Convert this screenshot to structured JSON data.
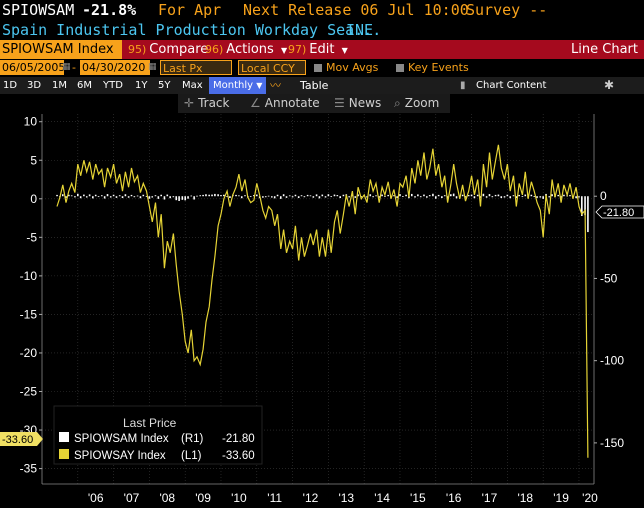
{
  "header": {
    "ticker": "SPIOWSAM",
    "value": "-21.8%",
    "for_label": "For Apr",
    "next_release": "Next Release 06 Jul 10:00",
    "survey": "Survey --",
    "description": "Spain Industrial Production Workday Sea...",
    "source": "INE"
  },
  "menu": {
    "index": "SPIOWSAM Index",
    "compare_num": "95)",
    "compare": "Compare",
    "actions_num": "96)",
    "actions": "Actions",
    "edit_num": "97)",
    "edit": "Edit",
    "chart_type": "Line Chart"
  },
  "controls": {
    "start_date": "06/05/2005",
    "end_date": "04/30/2020",
    "field": "Last Px",
    "currency": "Local CCY",
    "mov_avgs": "Mov Avgs",
    "key_events": "Key Events"
  },
  "periods": {
    "items": [
      "1D",
      "3D",
      "1M",
      "6M",
      "YTD",
      "1Y",
      "5Y",
      "Max"
    ],
    "frequency": "Monthly",
    "table": "Table",
    "chart_content": "Chart Content"
  },
  "tools": {
    "track": "Track",
    "annotate": "Annotate",
    "news": "News",
    "zoom": "Zoom"
  },
  "colors": {
    "background": "#000000",
    "orange": "#f7a21b",
    "red_bar": "#a50a1e",
    "yoy_line": "#e6d435",
    "mom_bars": "#ffffff"
  },
  "chart_data": {
    "type": "line",
    "title": "",
    "left_axis": {
      "ticks": [
        10,
        5,
        0,
        -5,
        -10,
        -15,
        -20,
        -25,
        -30,
        -35
      ],
      "ylim": [
        -37,
        11
      ]
    },
    "right_axis": {
      "ticks": [
        0,
        -50,
        -100,
        -150
      ],
      "ylim": [
        -175,
        50
      ]
    },
    "x_ticks": [
      "'06",
      "'07",
      "'08",
      "'09",
      "'10",
      "'11",
      "'12",
      "'13",
      "'14",
      "'15",
      "'16",
      "'17",
      "'18",
      "'19",
      "'20"
    ],
    "series": [
      {
        "name": "SPIOWSAY Index (L1)",
        "axis": "left",
        "last": -33.6,
        "x": [
          2005.42,
          2005.5,
          2005.58,
          2005.67,
          2005.75,
          2005.83,
          2005.92,
          2006.0,
          2006.08,
          2006.17,
          2006.25,
          2006.33,
          2006.42,
          2006.5,
          2006.58,
          2006.67,
          2006.75,
          2006.83,
          2006.92,
          2007.0,
          2007.08,
          2007.17,
          2007.25,
          2007.33,
          2007.42,
          2007.5,
          2007.58,
          2007.67,
          2007.75,
          2007.83,
          2007.92,
          2008.0,
          2008.08,
          2008.17,
          2008.25,
          2008.33,
          2008.42,
          2008.5,
          2008.58,
          2008.67,
          2008.75,
          2008.83,
          2008.92,
          2009.0,
          2009.08,
          2009.17,
          2009.25,
          2009.33,
          2009.42,
          2009.5,
          2009.58,
          2009.67,
          2009.75,
          2009.83,
          2009.92,
          2010.0,
          2010.08,
          2010.17,
          2010.25,
          2010.33,
          2010.42,
          2010.5,
          2010.58,
          2010.67,
          2010.75,
          2010.83,
          2010.92,
          2011.0,
          2011.08,
          2011.17,
          2011.25,
          2011.33,
          2011.42,
          2011.5,
          2011.58,
          2011.67,
          2011.75,
          2011.83,
          2011.92,
          2012.0,
          2012.08,
          2012.17,
          2012.25,
          2012.33,
          2012.42,
          2012.5,
          2012.58,
          2012.67,
          2012.75,
          2012.83,
          2012.92,
          2013.0,
          2013.08,
          2013.17,
          2013.25,
          2013.33,
          2013.42,
          2013.5,
          2013.58,
          2013.67,
          2013.75,
          2013.83,
          2013.92,
          2014.0,
          2014.08,
          2014.17,
          2014.25,
          2014.33,
          2014.42,
          2014.5,
          2014.58,
          2014.67,
          2014.75,
          2014.83,
          2014.92,
          2015.0,
          2015.08,
          2015.17,
          2015.25,
          2015.33,
          2015.42,
          2015.5,
          2015.58,
          2015.67,
          2015.75,
          2015.83,
          2015.92,
          2016.0,
          2016.08,
          2016.17,
          2016.25,
          2016.33,
          2016.42,
          2016.5,
          2016.58,
          2016.67,
          2016.75,
          2016.83,
          2016.92,
          2017.0,
          2017.08,
          2017.17,
          2017.25,
          2017.33,
          2017.42,
          2017.5,
          2017.58,
          2017.67,
          2017.75,
          2017.83,
          2017.92,
          2018.0,
          2018.08,
          2018.17,
          2018.25,
          2018.33,
          2018.42,
          2018.5,
          2018.58,
          2018.67,
          2018.75,
          2018.83,
          2018.92,
          2019.0,
          2019.08,
          2019.17,
          2019.25,
          2019.33,
          2019.42,
          2019.5,
          2019.58,
          2019.67,
          2019.75,
          2019.83,
          2019.92,
          2020.0,
          2020.08,
          2020.17,
          2020.25
        ],
        "values": [
          -1.0,
          0.2,
          1.8,
          -0.5,
          1.0,
          2.0,
          0.8,
          4.5,
          3.0,
          5.0,
          3.5,
          4.8,
          2.5,
          4.5,
          3.2,
          3.8,
          1.5,
          4.0,
          2.8,
          4.5,
          2.0,
          3.2,
          1.0,
          3.5,
          1.5,
          4.0,
          2.2,
          3.0,
          0.8,
          2.0,
          1.0,
          -1.0,
          -3.0,
          -0.5,
          -5.0,
          -2.0,
          -9.0,
          -5.5,
          -7.0,
          -4.5,
          -8.5,
          -12.0,
          -15.0,
          -18.5,
          -20.0,
          -17.0,
          -21.0,
          -20.5,
          -21.5,
          -19.5,
          -16.0,
          -14.0,
          -10.5,
          -7.5,
          -3.5,
          -2.0,
          0.0,
          1.0,
          -1.0,
          0.5,
          1.5,
          3.2,
          1.0,
          2.5,
          0.2,
          -0.5,
          -0.2,
          2.0,
          0.5,
          -1.5,
          -2.5,
          -1.0,
          -1.5,
          -3.5,
          -2.0,
          -6.5,
          -4.0,
          -7.0,
          -5.5,
          -6.5,
          -3.5,
          -8.0,
          -5.0,
          -7.5,
          -6.0,
          -4.5,
          -6.0,
          -4.0,
          -7.5,
          -5.0,
          -7.5,
          -4.0,
          -7.0,
          -3.0,
          -1.5,
          -4.5,
          -2.0,
          0.5,
          -1.0,
          1.0,
          -2.0,
          1.5,
          0.0,
          0.5,
          -0.5,
          2.5,
          1.0,
          2.0,
          -0.5,
          1.5,
          0.5,
          2.2,
          0.0,
          1.2,
          -1.0,
          2.0,
          1.5,
          3.0,
          0.2,
          4.0,
          2.0,
          5.0,
          3.0,
          6.0,
          2.5,
          4.0,
          6.5,
          3.0,
          4.5,
          1.5,
          3.0,
          -0.5,
          1.8,
          4.5,
          2.0,
          0.0,
          1.8,
          -0.3,
          1.0,
          3.0,
          0.5,
          2.5,
          -1.0,
          4.5,
          1.5,
          6.0,
          2.5,
          5.0,
          7.0,
          4.0,
          2.5,
          4.5,
          1.0,
          3.0,
          -1.0,
          2.0,
          0.5,
          3.5,
          0.0,
          2.2,
          1.0,
          -0.5,
          -1.5,
          -5.0,
          0.5,
          -2.0,
          2.5,
          0.2,
          2.0,
          -0.5,
          1.8,
          0.5,
          2.0,
          0.0,
          1.5,
          -1.0,
          -2.0,
          -1.5,
          -33.6
        ]
      },
      {
        "name": "SPIOWSAM Index (R1)",
        "axis": "right",
        "type": "bar",
        "last": -21.8,
        "x": [
          2005.42,
          2005.5,
          2005.58,
          2005.67,
          2005.75,
          2005.83,
          2005.92,
          2006.0,
          2006.08,
          2006.17,
          2006.25,
          2006.33,
          2006.42,
          2006.5,
          2006.58,
          2006.67,
          2006.75,
          2006.83,
          2006.92,
          2007.0,
          2007.08,
          2007.17,
          2007.25,
          2007.33,
          2007.42,
          2007.5,
          2007.58,
          2007.67,
          2007.75,
          2007.83,
          2007.92,
          2008.0,
          2008.08,
          2008.17,
          2008.25,
          2008.33,
          2008.42,
          2008.5,
          2008.58,
          2008.67,
          2008.75,
          2008.83,
          2008.92,
          2009.0,
          2009.08,
          2009.17,
          2009.25,
          2009.33,
          2009.42,
          2009.5,
          2009.58,
          2009.67,
          2009.75,
          2009.83,
          2009.92,
          2010.0,
          2010.08,
          2010.17,
          2010.25,
          2010.33,
          2010.42,
          2010.5,
          2010.58,
          2010.67,
          2010.75,
          2010.83,
          2010.92,
          2011.0,
          2011.08,
          2011.17,
          2011.25,
          2011.33,
          2011.42,
          2011.5,
          2011.58,
          2011.67,
          2011.75,
          2011.83,
          2011.92,
          2012.0,
          2012.08,
          2012.17,
          2012.25,
          2012.33,
          2012.42,
          2012.5,
          2012.58,
          2012.67,
          2012.75,
          2012.83,
          2012.92,
          2013.0,
          2013.08,
          2013.17,
          2013.25,
          2013.33,
          2013.42,
          2013.5,
          2013.58,
          2013.67,
          2013.75,
          2013.83,
          2013.92,
          2014.0,
          2014.08,
          2014.17,
          2014.25,
          2014.33,
          2014.42,
          2014.5,
          2014.58,
          2014.67,
          2014.75,
          2014.83,
          2014.92,
          2015.0,
          2015.08,
          2015.17,
          2015.25,
          2015.33,
          2015.42,
          2015.5,
          2015.58,
          2015.67,
          2015.75,
          2015.83,
          2015.92,
          2016.0,
          2016.08,
          2016.17,
          2016.25,
          2016.33,
          2016.42,
          2016.5,
          2016.58,
          2016.67,
          2016.75,
          2016.83,
          2016.92,
          2017.0,
          2017.08,
          2017.17,
          2017.25,
          2017.33,
          2017.42,
          2017.5,
          2017.58,
          2017.67,
          2017.75,
          2017.83,
          2017.92,
          2018.0,
          2018.08,
          2018.17,
          2018.25,
          2018.33,
          2018.42,
          2018.5,
          2018.58,
          2018.67,
          2018.75,
          2018.83,
          2018.92,
          2019.0,
          2019.08,
          2019.17,
          2019.25,
          2019.33,
          2019.42,
          2019.5,
          2019.58,
          2019.67,
          2019.75,
          2019.83,
          2019.92,
          2020.0,
          2020.08,
          2020.17,
          2020.25
        ],
        "values": [
          0.8,
          -0.6,
          1.2,
          -1.0,
          0.9,
          0.5,
          -0.7,
          1.5,
          -1.2,
          1.0,
          -0.8,
          1.1,
          -1.3,
          0.9,
          -0.5,
          0.6,
          -1.4,
          1.3,
          -0.8,
          0.9,
          -1.0,
          0.6,
          -1.1,
          1.2,
          -0.9,
          0.8,
          -0.6,
          0.4,
          -1.2,
          0.9,
          -0.4,
          -1.5,
          -0.8,
          0.6,
          -1.6,
          0.9,
          -2.0,
          1.0,
          -1.2,
          -0.6,
          -2.4,
          -2.9,
          -2.2,
          -2.5,
          -1.5,
          0.4,
          -2.0,
          0.3,
          0.6,
          0.8,
          1.2,
          0.9,
          1.0,
          1.4,
          1.2,
          0.7,
          0.9,
          -0.5,
          -1.1,
          0.9,
          0.8,
          0.5,
          -1.2,
          0.6,
          -0.8,
          -0.4,
          0.7,
          1.0,
          -1.2,
          -0.9,
          -0.6,
          0.3,
          -0.8,
          -1.3,
          0.9,
          -1.6,
          1.2,
          -1.0,
          0.5,
          -0.7,
          0.9,
          -1.1,
          0.6,
          -0.6,
          0.8,
          0.5,
          -0.9,
          1.1,
          -1.3,
          1.0,
          -0.8,
          1.2,
          -0.5,
          1.0,
          0.7,
          -1.1,
          0.9,
          1.2,
          -0.7,
          0.6,
          -1.0,
          1.1,
          -0.4,
          0.5,
          -0.8,
          1.2,
          -0.6,
          0.5,
          -0.9,
          1.0,
          -0.5,
          0.8,
          -1.0,
          0.6,
          -1.1,
          1.3,
          -0.3,
          0.9,
          -1.2,
          1.4,
          -0.8,
          1.1,
          -0.6,
          1.0,
          -0.9,
          0.7,
          1.5,
          -1.5,
          0.8,
          -1.1,
          0.6,
          -1.6,
          1.2,
          1.6,
          -1.3,
          -1.4,
          0.9,
          -0.8,
          0.7,
          1.0,
          -1.2,
          0.9,
          -1.0,
          1.5,
          -0.9,
          1.3,
          -0.6,
          0.8,
          1.0,
          -1.1,
          -0.8,
          0.9,
          -1.2,
          0.6,
          -1.1,
          0.8,
          -0.5,
          1.0,
          -1.0,
          0.9,
          -0.5,
          -1.0,
          -0.8,
          -1.6,
          1.4,
          -0.7,
          1.2,
          -0.6,
          0.8,
          -0.9,
          0.9,
          0.4,
          0.7,
          -0.8,
          -1.2,
          -0.8,
          -12.0,
          -11.5,
          -21.8
        ]
      }
    ],
    "legend": {
      "title": "Last Price",
      "placement": "bottom-left",
      "entries": [
        {
          "series": "SPIOWSAM Index",
          "axis": "(R1)",
          "value": "-21.80",
          "color": "#ffffff"
        },
        {
          "series": "SPIOWSAY Index",
          "axis": "(L1)",
          "value": "-33.60",
          "color": "#e6d435"
        }
      ]
    },
    "last_value_labels": {
      "left": "-33.60",
      "right": "-21.80"
    }
  }
}
